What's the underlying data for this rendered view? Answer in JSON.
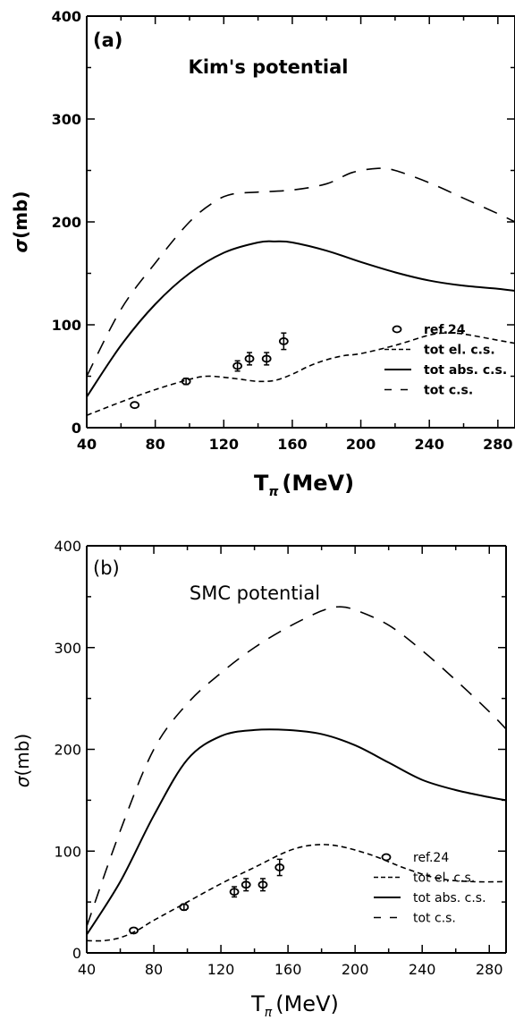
{
  "chart_data": [
    {
      "type": "line",
      "panel_label": "(a)",
      "title": "Kim's potential",
      "xlabel_main": "T",
      "xlabel_sub": "π",
      "xlabel_unit": "(MeV)",
      "ylabel_main": "σ",
      "ylabel_unit": "(mb)",
      "xlim": [
        40,
        290
      ],
      "ylim": [
        0,
        400
      ],
      "xticks": [
        40,
        80,
        120,
        160,
        200,
        240,
        280
      ],
      "yticks": [
        0,
        100,
        200,
        300,
        400
      ],
      "legend_position": "bottom-right",
      "series": [
        {
          "name": "ref.24",
          "style": "points",
          "x": [
            68,
            98,
            128,
            135,
            145,
            155
          ],
          "y": [
            22,
            45,
            60,
            67,
            67,
            84
          ],
          "err": [
            2,
            3,
            5,
            6,
            6,
            8
          ]
        },
        {
          "name": "tot el. c.s.",
          "style": "short-dash",
          "x": [
            40,
            60,
            80,
            100,
            110,
            120,
            130,
            140,
            150,
            160,
            170,
            180,
            190,
            200,
            220,
            240,
            250,
            260,
            280,
            290
          ],
          "y": [
            12,
            25,
            37,
            47,
            50,
            49,
            47,
            45,
            46,
            52,
            60,
            66,
            70,
            72,
            80,
            90,
            92,
            91,
            85,
            82
          ]
        },
        {
          "name": "tot abs. c.s.",
          "style": "solid",
          "x": [
            40,
            60,
            80,
            100,
            120,
            140,
            150,
            160,
            180,
            200,
            220,
            240,
            260,
            280,
            290
          ],
          "y": [
            30,
            80,
            120,
            150,
            170,
            180,
            181,
            180,
            172,
            161,
            151,
            143,
            138,
            135,
            133
          ]
        },
        {
          "name": "tot c.s.",
          "style": "long-dash",
          "x": [
            40,
            60,
            80,
            100,
            115,
            125,
            140,
            160,
            180,
            195,
            210,
            220,
            240,
            260,
            280,
            290
          ],
          "y": [
            50,
            115,
            160,
            200,
            220,
            227,
            229,
            231,
            237,
            248,
            252,
            250,
            238,
            223,
            208,
            200
          ]
        }
      ]
    },
    {
      "type": "line",
      "panel_label": "(b)",
      "title": "SMC potential",
      "xlabel_main": "T",
      "xlabel_sub": "π",
      "xlabel_unit": "(MeV)",
      "ylabel_main": "σ",
      "ylabel_unit": "(mb)",
      "xlim": [
        40,
        290
      ],
      "ylim": [
        0,
        400
      ],
      "xticks": [
        40,
        80,
        120,
        160,
        200,
        240,
        280
      ],
      "yticks": [
        0,
        100,
        200,
        300,
        400
      ],
      "legend_position": "bottom-right",
      "series": [
        {
          "name": "ref.24",
          "style": "points",
          "x": [
            68,
            98,
            128,
            135,
            145,
            155
          ],
          "y": [
            22,
            45,
            60,
            67,
            67,
            84
          ],
          "err": [
            2,
            3,
            5,
            6,
            6,
            8
          ]
        },
        {
          "name": "tot el. c.s.",
          "style": "short-dash",
          "x": [
            40,
            50,
            60,
            70,
            80,
            100,
            120,
            140,
            160,
            175,
            190,
            210,
            230,
            250,
            270,
            290
          ],
          "y": [
            12,
            12,
            15,
            22,
            32,
            50,
            68,
            84,
            100,
            106,
            105,
            96,
            83,
            73,
            70,
            70
          ]
        },
        {
          "name": "tot abs. c.s.",
          "style": "solid",
          "x": [
            40,
            60,
            80,
            100,
            120,
            140,
            160,
            180,
            200,
            220,
            240,
            260,
            280,
            290
          ],
          "y": [
            18,
            70,
            135,
            190,
            213,
            219,
            219,
            215,
            204,
            187,
            170,
            160,
            153,
            150
          ]
        },
        {
          "name": "tot c.s.",
          "style": "long-dash",
          "x": [
            40,
            60,
            80,
            100,
            120,
            140,
            160,
            180,
            190,
            200,
            220,
            240,
            260,
            280,
            290
          ],
          "y": [
            26,
            120,
            200,
            245,
            275,
            300,
            320,
            336,
            340,
            337,
            322,
            297,
            268,
            237,
            220
          ]
        }
      ]
    }
  ]
}
